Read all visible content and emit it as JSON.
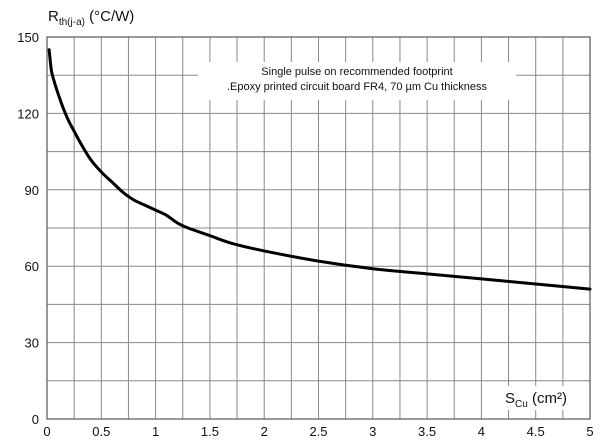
{
  "chart_data": {
    "type": "line",
    "ylabel": {
      "main": "R",
      "sub": "th(j-a)",
      "unit": " (°C/W)"
    },
    "xlabel": {
      "main": "S",
      "sub": "Cu",
      "unit": " (cm²)"
    },
    "annotation": [
      "Single pulse on recommended footprint",
      ".Epoxy printed circuit board FR4, 70 µm Cu thickness"
    ],
    "xlim": [
      0,
      5
    ],
    "ylim": [
      0,
      150
    ],
    "x_ticks": [
      0,
      0.5,
      1,
      1.5,
      2,
      2.5,
      3,
      3.5,
      4,
      4.5,
      5
    ],
    "x_tick_labels": [
      "0",
      "0.5",
      "1",
      "1.5",
      "2",
      "2.5",
      "3",
      "3.5",
      "4",
      "4.5",
      "5"
    ],
    "y_ticks": [
      0,
      30,
      60,
      90,
      120,
      150
    ],
    "y_tick_labels": [
      "0",
      "30",
      "60",
      "90",
      "120",
      "150"
    ],
    "x_minor_step": 0.25,
    "y_minor_step": 15,
    "grid": true,
    "line_color": "#000000",
    "grid_color": "#888888",
    "series": [
      {
        "x": [
          0.02,
          0.04,
          0.07,
          0.1,
          0.15,
          0.2,
          0.25,
          0.3,
          0.4,
          0.5,
          0.6,
          0.7,
          0.8,
          0.9,
          1.0,
          1.1,
          1.2,
          1.3,
          1.5,
          1.7,
          2.0,
          2.5,
          3.0,
          3.5,
          4.0,
          4.5,
          5.0
        ],
        "y": [
          145,
          137,
          132,
          128,
          122,
          117,
          113,
          109,
          102,
          97,
          93,
          89,
          86,
          84,
          82,
          80,
          77,
          75,
          72,
          69,
          66,
          62,
          59,
          57,
          55,
          53,
          51
        ]
      }
    ]
  }
}
